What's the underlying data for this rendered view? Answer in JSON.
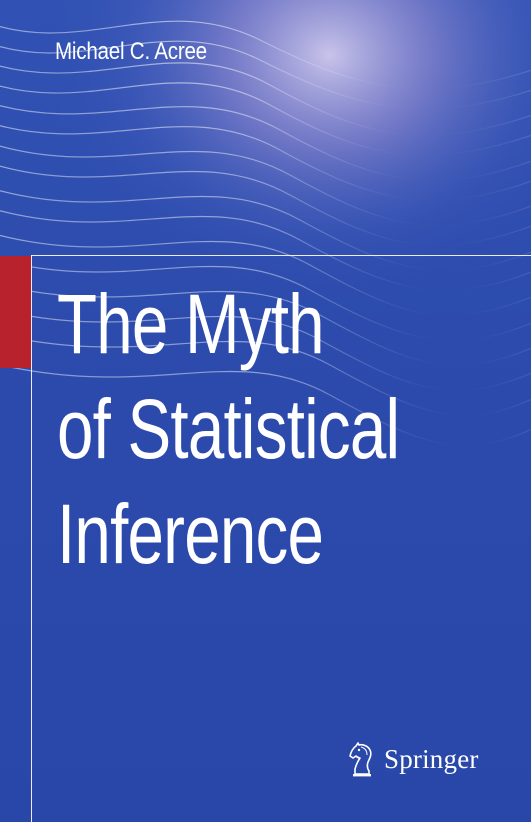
{
  "cover": {
    "author": "Michael C. Acree",
    "title_lines": [
      "The Myth",
      "of Statistical",
      "Inference"
    ],
    "publisher": "Springer",
    "publisher_icon": "chess-knight-icon",
    "colors": {
      "background": "#2a47a8",
      "accent_tab": "#b7222d",
      "text": "#ffffff",
      "wave_highlight": "#c9b6e8"
    }
  }
}
